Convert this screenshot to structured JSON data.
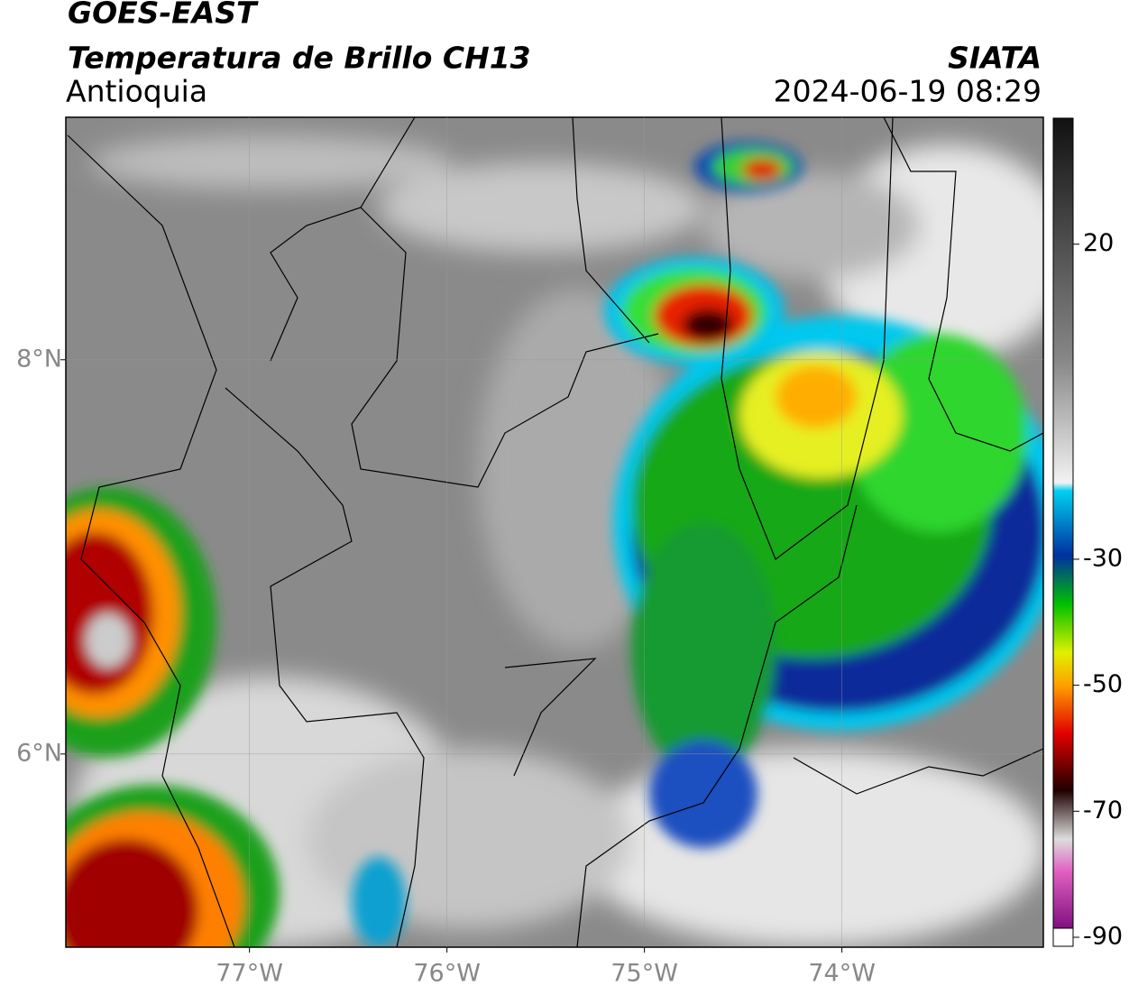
{
  "header": {
    "title": "GOES-EAST",
    "subtitle": "Temperatura de Brillo CH13",
    "region": "Antioquia",
    "source": "SIATA",
    "datetime": "2024-06-19 08:29"
  },
  "map": {
    "xlim": [
      -77.93,
      -72.98
    ],
    "ylim": [
      5.02,
      9.23
    ],
    "xticks": [
      {
        "value": -77,
        "label": "77°W"
      },
      {
        "value": -76,
        "label": "76°W"
      },
      {
        "value": -75,
        "label": "75°W"
      },
      {
        "value": -74,
        "label": "74°W"
      }
    ],
    "yticks": [
      {
        "value": 6,
        "label": "6°N"
      },
      {
        "value": 8,
        "label": "8°N"
      }
    ]
  },
  "colorbar": {
    "lim": [
      -90,
      40
    ],
    "ticks": [
      20,
      -30,
      -50,
      -70,
      -90
    ]
  }
}
